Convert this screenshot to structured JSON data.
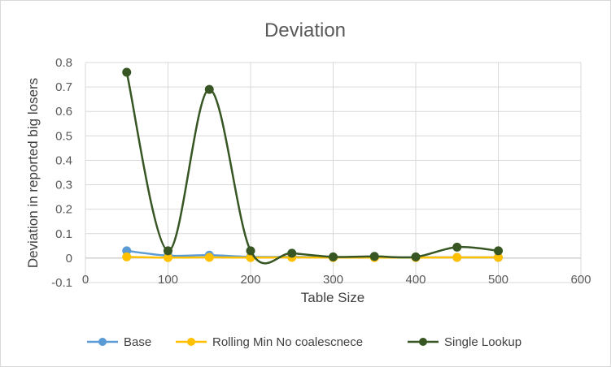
{
  "chart_data": {
    "type": "line",
    "title": "Deviation",
    "xlabel": "Table Size",
    "ylabel": "Deviation in reported  big losers",
    "xlim": [
      0,
      600
    ],
    "ylim": [
      -0.1,
      0.8
    ],
    "x_ticks": [
      "0",
      "100",
      "200",
      "300",
      "400",
      "500",
      "600"
    ],
    "y_ticks": [
      "-0.1",
      "0",
      "0.1",
      "0.2",
      "0.3",
      "0.4",
      "0.5",
      "0.6",
      "0.7",
      "0.8"
    ],
    "grid": true,
    "legend": "bottom",
    "smoothed": true,
    "x": [
      50,
      100,
      150,
      200,
      250,
      300,
      350,
      400,
      450,
      500
    ],
    "series": [
      {
        "name": "Base",
        "color": "#5b9bd5",
        "values": [
          0.03,
          0.01,
          0.012,
          0.005,
          0.005,
          0.003,
          0.003,
          0.003,
          0.003,
          0.003
        ]
      },
      {
        "name": "Rolling Min No coalescnece",
        "color": "#ffc000",
        "values": [
          0.005,
          0.002,
          0.003,
          0.002,
          0.003,
          0.002,
          0.002,
          0.002,
          0.003,
          0.003
        ]
      },
      {
        "name": "Single Lookup",
        "color": "#375623",
        "values": [
          0.76,
          0.03,
          0.69,
          0.03,
          0.02,
          0.005,
          0.007,
          0.005,
          0.045,
          0.03
        ]
      }
    ]
  }
}
